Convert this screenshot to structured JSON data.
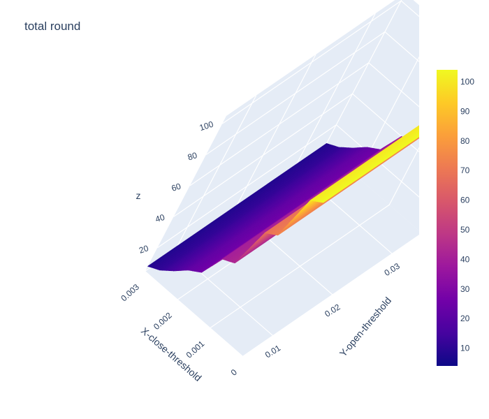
{
  "title": "total round",
  "chart_data": {
    "type": "surface",
    "title": "total round",
    "xlabel": "X-close-threshold",
    "ylabel": "Y-open-threshold",
    "zlabel": "z",
    "x_ticks": [
      "0",
      "0.001",
      "0.002",
      "0.003"
    ],
    "y_ticks": [
      "0.01",
      "0.02",
      "0.03"
    ],
    "z_ticks": [
      "20",
      "40",
      "60",
      "80",
      "100"
    ],
    "xlim": [
      0,
      0.003
    ],
    "ylim": [
      0.005,
      0.035
    ],
    "zlim": [
      5,
      105
    ],
    "x": [
      0,
      0.0003,
      0.0006,
      0.0009,
      0.0012,
      0.0015,
      0.0018,
      0.0021,
      0.0024,
      0.0027,
      0.003
    ],
    "x_z_profile": [
      104,
      100,
      72,
      68,
      43,
      40,
      26,
      22,
      16,
      11,
      8
    ],
    "colorscale": "Plasma",
    "colorbar": {
      "ticks": [
        "10",
        "20",
        "30",
        "40",
        "50",
        "60",
        "70",
        "80",
        "90",
        "100"
      ],
      "min": 4,
      "max": 104
    }
  }
}
